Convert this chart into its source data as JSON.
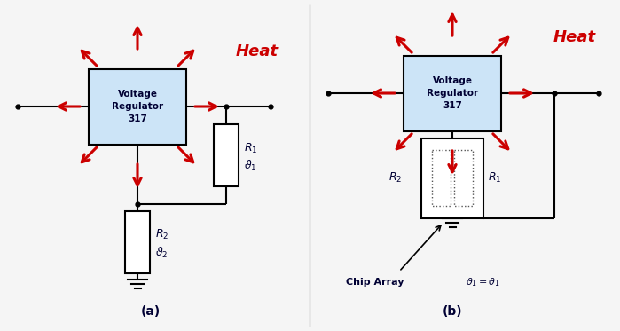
{
  "bg_color": "#f5f5f5",
  "box_fill": "#cce4f7",
  "box_edge": "#000000",
  "line_color": "#000000",
  "arrow_color": "#cc0000",
  "heat_color": "#cc0000",
  "label_color": "#000033",
  "heat_text": "Heat",
  "label_a": "(a)",
  "label_b": "(b)",
  "vr_text": "Voltage\nRegulator\n317"
}
